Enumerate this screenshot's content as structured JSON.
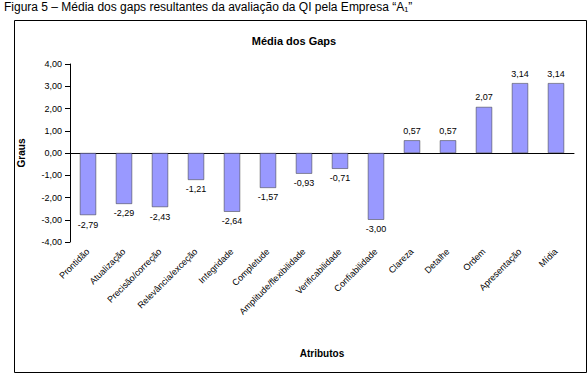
{
  "chart_data": {
    "type": "bar",
    "annotations": [
      "Figura 5 – Média dos gaps resultantes da avaliação da QI pela Empresa “A₁”"
    ],
    "title": "Média dos Gaps",
    "x_label": "Atributos",
    "y_label": "Graus",
    "categories": [
      "Prontidão",
      "Atualização",
      "Precisão/correção",
      "Relevância/exceção",
      "Integridade",
      "Completude",
      "Amplitude/flexibilidade",
      "Verificabilidade",
      "Confiabilidade",
      "Clareza",
      "Detalhe",
      "Ordem",
      "Apresentação",
      "Mídia"
    ],
    "values": [
      -2.79,
      -2.29,
      -2.43,
      -1.21,
      -2.64,
      -1.57,
      -0.93,
      -0.71,
      -3.0,
      0.57,
      0.57,
      2.07,
      3.14,
      3.14
    ],
    "value_labels": [
      "-2,79",
      "-2,29",
      "-2,43",
      "-1,21",
      "-2,64",
      "-1,57",
      "-0,93",
      "-0,71",
      "-3,00",
      "0,57",
      "0,57",
      "2,07",
      "3,14",
      "3,14"
    ],
    "color": "#9999ff",
    "ylim": [
      -4,
      4
    ],
    "yticks": [
      {
        "value": -4,
        "label": "-4,00"
      },
      {
        "value": -3,
        "label": "-3,00"
      },
      {
        "value": -2,
        "label": "-2,00"
      },
      {
        "value": -1,
        "label": "-1,00"
      },
      {
        "value": 0,
        "label": "0,00"
      },
      {
        "value": 1,
        "label": "1,00"
      },
      {
        "value": 2,
        "label": "2,00"
      },
      {
        "value": 3,
        "label": "3,00"
      },
      {
        "value": 4,
        "label": "4,00"
      }
    ],
    "grid": false,
    "data_labels": true
  }
}
